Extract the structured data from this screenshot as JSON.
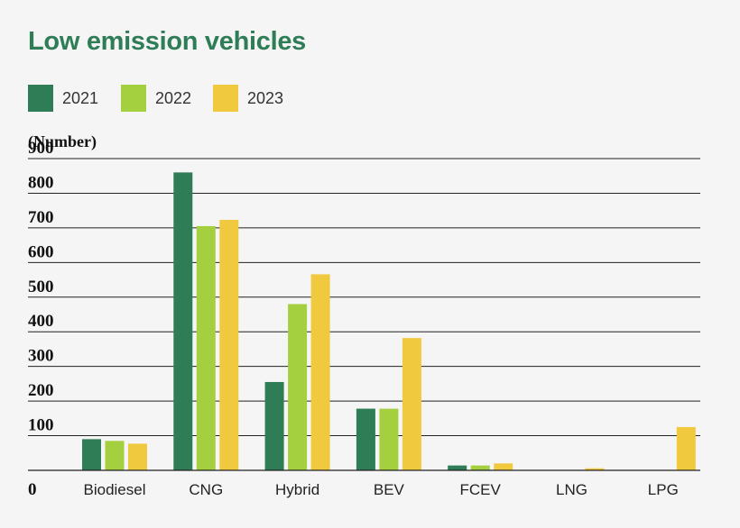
{
  "chart_data": {
    "type": "bar",
    "title": "Low emission vehicles",
    "ylabel": "(Number)",
    "xlabel": "",
    "categories": [
      "Biodiesel",
      "CNG",
      "Hybrid",
      "BEV",
      "FCEV",
      "LNG",
      "LPG"
    ],
    "series": [
      {
        "name": "2021",
        "color": "#2e7d57",
        "values": [
          90,
          860,
          255,
          178,
          14,
          0,
          0
        ]
      },
      {
        "name": "2022",
        "color": "#a4cf3f",
        "values": [
          85,
          705,
          480,
          178,
          14,
          0,
          0
        ]
      },
      {
        "name": "2023",
        "color": "#f1c93f",
        "values": [
          77,
          723,
          566,
          382,
          20,
          6,
          125
        ]
      }
    ],
    "ylim": [
      0,
      900
    ],
    "yticks": [
      0,
      100,
      200,
      300,
      400,
      500,
      600,
      700,
      800,
      900
    ],
    "grid": true,
    "legend": "top-left"
  }
}
